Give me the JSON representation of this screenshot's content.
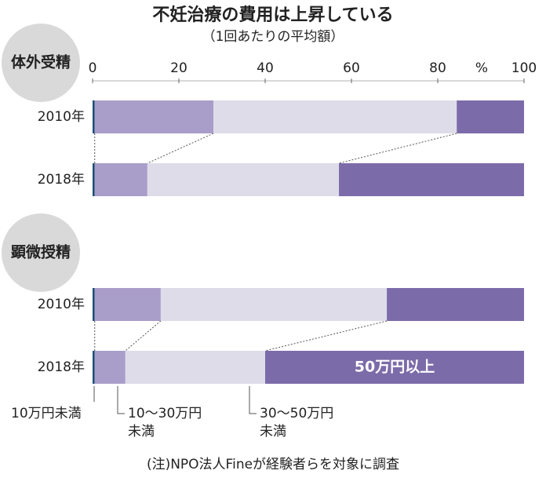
{
  "chart_data": {
    "type": "stacked-bar-horizontal",
    "title": "不妊治療の費用は上昇している",
    "subtitle": "（1回あたりの平均額）",
    "groups": [
      "体外受精",
      "顕微授精"
    ],
    "categories": [
      "2010年",
      "2018年",
      "2010年",
      "2018年"
    ],
    "series": [
      {
        "name": "10万円未満",
        "color": "#1f4e79",
        "values": [
          0.5,
          0.5,
          0.5,
          0.5
        ]
      },
      {
        "name": "10～30万円\n未満",
        "color": "#a99dc9",
        "values": [
          27.5,
          12.2,
          15.3,
          7.1
        ]
      },
      {
        "name": "30～50万円\n未満",
        "color": "#dedce9",
        "values": [
          56.4,
          44.4,
          52.4,
          32.4
        ]
      },
      {
        "name": "50万円以上",
        "color": "#7c6ba9",
        "values": [
          15.6,
          42.9,
          31.8,
          60.0
        ]
      }
    ],
    "xlim": [
      0,
      100
    ],
    "xticks": [
      0,
      20,
      40,
      60,
      80,
      100
    ],
    "unit": "%",
    "note": "(注)NPO法人Fineが経験者らを対象に調査"
  }
}
